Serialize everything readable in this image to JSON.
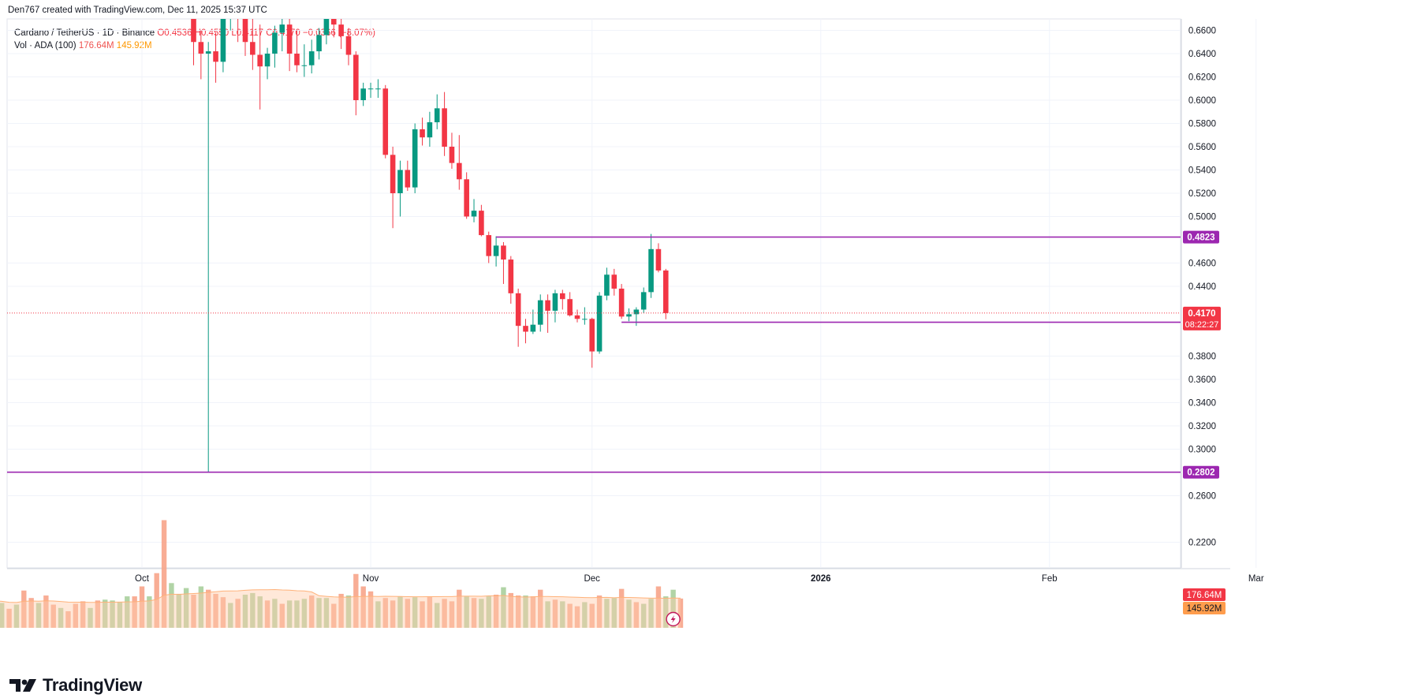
{
  "header": {
    "author_note": "Den767 created with TradingView.com, Dec 11, 2025 15:37 UTC"
  },
  "legend": {
    "symbol": "Cardano / TetherUS · 1D · Binance",
    "ohlc": "O0.4536 H0.4550 L0.4117 C0.4170 −0.0366 (−8.07%)",
    "vol_label": "Vol · ADA (100)",
    "vol_value": "176.64M",
    "vol_ma": "145.92M"
  },
  "footer": {
    "brand": "TradingView"
  },
  "colors": {
    "up": "#089981",
    "down": "#f23645",
    "level": "#9c27b0",
    "vol_up": "#a9cf9c",
    "vol_down": "#f7a48a",
    "vol_ma_fill": "#ffccaa"
  },
  "chart_data": {
    "type": "candlestick",
    "title": "Cardano / TetherUS · 1D · Binance",
    "ylim": [
      0.21,
      0.68
    ],
    "y_ticks": [
      "0.6600",
      "0.6400",
      "0.6200",
      "0.6000",
      "0.5800",
      "0.5600",
      "0.5400",
      "0.5200",
      "0.5000",
      "0.4600",
      "0.4400",
      "0.3800",
      "0.3600",
      "0.3400",
      "0.3200",
      "0.3000",
      "0.2600",
      "0.2200"
    ],
    "x_ticks": [
      "Oct",
      "Nov",
      "Dec",
      "2026",
      "Feb",
      "Mar"
    ],
    "x_tick_dates": [
      "2025-10-01",
      "2025-11-01",
      "2025-12-01",
      "2026-01-01",
      "2026-02-01",
      "2026-03-01"
    ],
    "x_range": [
      "2025-09-06",
      "2026-03-25"
    ],
    "candles": [
      {
        "d": "2025-10-08",
        "o": 0.674,
        "h": 0.69,
        "l": 0.63,
        "c": 0.65
      },
      {
        "d": "2025-10-09",
        "o": 0.65,
        "h": 0.66,
        "l": 0.618,
        "c": 0.64
      },
      {
        "d": "2025-10-10",
        "o": 0.64,
        "h": 0.65,
        "l": 0.28,
        "c": 0.642
      },
      {
        "d": "2025-10-11",
        "o": 0.642,
        "h": 0.658,
        "l": 0.615,
        "c": 0.633
      },
      {
        "d": "2025-10-12",
        "o": 0.633,
        "h": 0.68,
        "l": 0.624,
        "c": 0.678
      },
      {
        "d": "2025-10-13",
        "o": 0.678,
        "h": 0.69,
        "l": 0.66,
        "c": 0.685
      },
      {
        "d": "2025-10-14",
        "o": 0.685,
        "h": 0.69,
        "l": 0.65,
        "c": 0.67
      },
      {
        "d": "2025-10-15",
        "o": 0.67,
        "h": 0.68,
        "l": 0.638,
        "c": 0.65
      },
      {
        "d": "2025-10-16",
        "o": 0.65,
        "h": 0.67,
        "l": 0.626,
        "c": 0.639
      },
      {
        "d": "2025-10-17",
        "o": 0.639,
        "h": 0.665,
        "l": 0.592,
        "c": 0.629
      },
      {
        "d": "2025-10-18",
        "o": 0.629,
        "h": 0.645,
        "l": 0.618,
        "c": 0.64
      },
      {
        "d": "2025-10-19",
        "o": 0.64,
        "h": 0.664,
        "l": 0.628,
        "c": 0.658
      },
      {
        "d": "2025-10-20",
        "o": 0.658,
        "h": 0.67,
        "l": 0.642,
        "c": 0.665
      },
      {
        "d": "2025-10-21",
        "o": 0.665,
        "h": 0.672,
        "l": 0.625,
        "c": 0.64
      },
      {
        "d": "2025-10-22",
        "o": 0.64,
        "h": 0.66,
        "l": 0.624,
        "c": 0.63
      },
      {
        "d": "2025-10-23",
        "o": 0.63,
        "h": 0.648,
        "l": 0.62,
        "c": 0.63
      },
      {
        "d": "2025-10-24",
        "o": 0.63,
        "h": 0.652,
        "l": 0.623,
        "c": 0.642
      },
      {
        "d": "2025-10-25",
        "o": 0.642,
        "h": 0.662,
        "l": 0.635,
        "c": 0.656
      },
      {
        "d": "2025-10-26",
        "o": 0.656,
        "h": 0.68,
        "l": 0.648,
        "c": 0.67
      },
      {
        "d": "2025-10-27",
        "o": 0.67,
        "h": 0.68,
        "l": 0.654,
        "c": 0.665
      },
      {
        "d": "2025-10-28",
        "o": 0.665,
        "h": 0.679,
        "l": 0.644,
        "c": 0.655
      },
      {
        "d": "2025-10-29",
        "o": 0.655,
        "h": 0.662,
        "l": 0.63,
        "c": 0.639
      },
      {
        "d": "2025-10-30",
        "o": 0.639,
        "h": 0.642,
        "l": 0.587,
        "c": 0.6
      },
      {
        "d": "2025-10-31",
        "o": 0.6,
        "h": 0.615,
        "l": 0.595,
        "c": 0.61
      },
      {
        "d": "2025-11-01",
        "o": 0.61,
        "h": 0.615,
        "l": 0.602,
        "c": 0.61
      },
      {
        "d": "2025-11-02",
        "o": 0.61,
        "h": 0.618,
        "l": 0.602,
        "c": 0.61
      },
      {
        "d": "2025-11-03",
        "o": 0.61,
        "h": 0.613,
        "l": 0.55,
        "c": 0.553
      },
      {
        "d": "2025-11-04",
        "o": 0.553,
        "h": 0.56,
        "l": 0.49,
        "c": 0.52
      },
      {
        "d": "2025-11-05",
        "o": 0.52,
        "h": 0.548,
        "l": 0.5,
        "c": 0.54
      },
      {
        "d": "2025-11-06",
        "o": 0.54,
        "h": 0.548,
        "l": 0.522,
        "c": 0.525
      },
      {
        "d": "2025-11-07",
        "o": 0.525,
        "h": 0.58,
        "l": 0.52,
        "c": 0.575
      },
      {
        "d": "2025-11-08",
        "o": 0.575,
        "h": 0.585,
        "l": 0.561,
        "c": 0.568
      },
      {
        "d": "2025-11-09",
        "o": 0.568,
        "h": 0.59,
        "l": 0.56,
        "c": 0.581
      },
      {
        "d": "2025-11-10",
        "o": 0.581,
        "h": 0.605,
        "l": 0.575,
        "c": 0.593
      },
      {
        "d": "2025-11-11",
        "o": 0.593,
        "h": 0.607,
        "l": 0.552,
        "c": 0.56
      },
      {
        "d": "2025-11-12",
        "o": 0.56,
        "h": 0.572,
        "l": 0.541,
        "c": 0.546
      },
      {
        "d": "2025-11-13",
        "o": 0.546,
        "h": 0.57,
        "l": 0.523,
        "c": 0.532
      },
      {
        "d": "2025-11-14",
        "o": 0.532,
        "h": 0.538,
        "l": 0.498,
        "c": 0.5
      },
      {
        "d": "2025-11-15",
        "o": 0.5,
        "h": 0.515,
        "l": 0.495,
        "c": 0.505
      },
      {
        "d": "2025-11-16",
        "o": 0.505,
        "h": 0.51,
        "l": 0.483,
        "c": 0.484
      },
      {
        "d": "2025-11-17",
        "o": 0.484,
        "h": 0.487,
        "l": 0.46,
        "c": 0.466
      },
      {
        "d": "2025-11-18",
        "o": 0.466,
        "h": 0.483,
        "l": 0.457,
        "c": 0.475
      },
      {
        "d": "2025-11-19",
        "o": 0.475,
        "h": 0.478,
        "l": 0.442,
        "c": 0.463
      },
      {
        "d": "2025-11-20",
        "o": 0.463,
        "h": 0.466,
        "l": 0.425,
        "c": 0.434
      },
      {
        "d": "2025-11-21",
        "o": 0.434,
        "h": 0.438,
        "l": 0.388,
        "c": 0.406
      },
      {
        "d": "2025-11-22",
        "o": 0.406,
        "h": 0.412,
        "l": 0.391,
        "c": 0.401
      },
      {
        "d": "2025-11-23",
        "o": 0.401,
        "h": 0.42,
        "l": 0.399,
        "c": 0.407
      },
      {
        "d": "2025-11-24",
        "o": 0.407,
        "h": 0.433,
        "l": 0.401,
        "c": 0.428
      },
      {
        "d": "2025-11-25",
        "o": 0.428,
        "h": 0.433,
        "l": 0.4,
        "c": 0.419
      },
      {
        "d": "2025-11-26",
        "o": 0.419,
        "h": 0.437,
        "l": 0.409,
        "c": 0.434
      },
      {
        "d": "2025-11-27",
        "o": 0.434,
        "h": 0.437,
        "l": 0.42,
        "c": 0.429
      },
      {
        "d": "2025-11-28",
        "o": 0.429,
        "h": 0.435,
        "l": 0.414,
        "c": 0.415
      },
      {
        "d": "2025-11-29",
        "o": 0.415,
        "h": 0.42,
        "l": 0.409,
        "c": 0.412
      },
      {
        "d": "2025-11-30",
        "o": 0.412,
        "h": 0.422,
        "l": 0.407,
        "c": 0.412
      },
      {
        "d": "2025-12-01",
        "o": 0.412,
        "h": 0.413,
        "l": 0.37,
        "c": 0.384
      },
      {
        "d": "2025-12-02",
        "o": 0.384,
        "h": 0.435,
        "l": 0.382,
        "c": 0.432
      },
      {
        "d": "2025-12-03",
        "o": 0.432,
        "h": 0.456,
        "l": 0.428,
        "c": 0.45
      },
      {
        "d": "2025-12-04",
        "o": 0.45,
        "h": 0.455,
        "l": 0.432,
        "c": 0.438
      },
      {
        "d": "2025-12-05",
        "o": 0.438,
        "h": 0.442,
        "l": 0.412,
        "c": 0.414
      },
      {
        "d": "2025-12-06",
        "o": 0.414,
        "h": 0.421,
        "l": 0.41,
        "c": 0.416
      },
      {
        "d": "2025-12-07",
        "o": 0.416,
        "h": 0.422,
        "l": 0.406,
        "c": 0.42
      },
      {
        "d": "2025-12-08",
        "o": 0.42,
        "h": 0.439,
        "l": 0.417,
        "c": 0.435
      },
      {
        "d": "2025-12-09",
        "o": 0.435,
        "h": 0.485,
        "l": 0.43,
        "c": 0.472
      },
      {
        "d": "2025-12-10",
        "o": 0.472,
        "h": 0.477,
        "l": 0.452,
        "c": 0.4536
      },
      {
        "d": "2025-12-11",
        "o": 0.4536,
        "h": 0.455,
        "l": 0.4117,
        "c": 0.417
      }
    ],
    "volume": {
      "bars_per_day_start": "2025-09-06",
      "values_millions": [
        160,
        145,
        165,
        175,
        170,
        155,
        150,
        115,
        140,
        225,
        180,
        150,
        195,
        140,
        120,
        100,
        145,
        160,
        120,
        165,
        170,
        165,
        155,
        190,
        190,
        250,
        190,
        330,
        650,
        270,
        205,
        240,
        200,
        250,
        230,
        205,
        185,
        150,
        175,
        200,
        210,
        190,
        165,
        175,
        145,
        165,
        165,
        175,
        195,
        180,
        180,
        145,
        205,
        195,
        325,
        250,
        220,
        160,
        180,
        165,
        190,
        175,
        185,
        160,
        190,
        150,
        175,
        160,
        230,
        190,
        180,
        175,
        190,
        200,
        245,
        210,
        195,
        195,
        190,
        230,
        160,
        170,
        160,
        145,
        130,
        155,
        145,
        195,
        175,
        180,
        235,
        170,
        155,
        145,
        175,
        250,
        190,
        230,
        176.64
      ],
      "up_flags": [
        1,
        0,
        1,
        1,
        1,
        0,
        1,
        0,
        1,
        0,
        0,
        1,
        0,
        0,
        1,
        0,
        0,
        0,
        1,
        0,
        1,
        1,
        1,
        1,
        0,
        0,
        1,
        0,
        0,
        1,
        1,
        1,
        0,
        1,
        0,
        0,
        0,
        1,
        0,
        1,
        1,
        1,
        0,
        1,
        0,
        1,
        1,
        1,
        0,
        1,
        1,
        0,
        0,
        1,
        0,
        0,
        0,
        1,
        0,
        0,
        1,
        0,
        1,
        0,
        0,
        1,
        0,
        0,
        0,
        1,
        0,
        1,
        1,
        0,
        1,
        0,
        0,
        1,
        0,
        0,
        1,
        0,
        1,
        0,
        0,
        1,
        0,
        0,
        1,
        1,
        0,
        1,
        0,
        1,
        1,
        0,
        1,
        1,
        0
      ],
      "ma_label": "145.92M"
    },
    "levels": [
      {
        "value": 0.4823,
        "label": "0.4823"
      },
      {
        "value": 0.4091,
        "label": "0.4091"
      },
      {
        "value": 0.2802,
        "label": "0.2802"
      }
    ],
    "last_price": {
      "value": 0.417,
      "label": "0.4170",
      "countdown": "08:22:27"
    },
    "vol_labels": {
      "value": "176.64M",
      "ma": "145.92M"
    }
  }
}
